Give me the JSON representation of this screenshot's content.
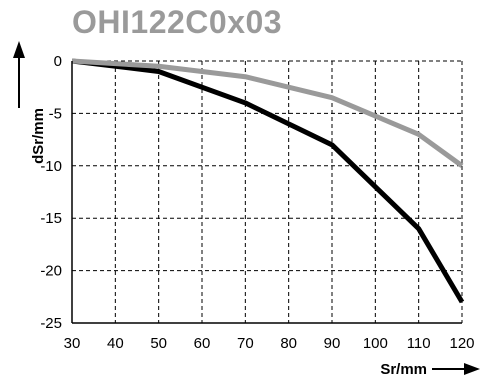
{
  "chart_data": {
    "type": "line",
    "title": "OHI122C0x03",
    "xlabel": "Sr/mm",
    "ylabel": "dSr/mm",
    "xlim": [
      30,
      120
    ],
    "ylim": [
      -25,
      0
    ],
    "xticks": [
      30,
      40,
      50,
      60,
      70,
      80,
      90,
      100,
      110,
      120
    ],
    "yticks": [
      0,
      -5,
      -10,
      -15,
      -20,
      -25
    ],
    "grid": true,
    "series": [
      {
        "color": "#000000",
        "x": [
          30,
          50,
          70,
          90,
          110,
          120
        ],
        "y": [
          0,
          -1,
          -4,
          -8,
          -16,
          -23
        ]
      },
      {
        "color": "#9a9a9a",
        "x": [
          30,
          50,
          70,
          90,
          110,
          120
        ],
        "y": [
          0,
          -0.5,
          -1.5,
          -3.5,
          -7,
          -10
        ]
      }
    ]
  }
}
